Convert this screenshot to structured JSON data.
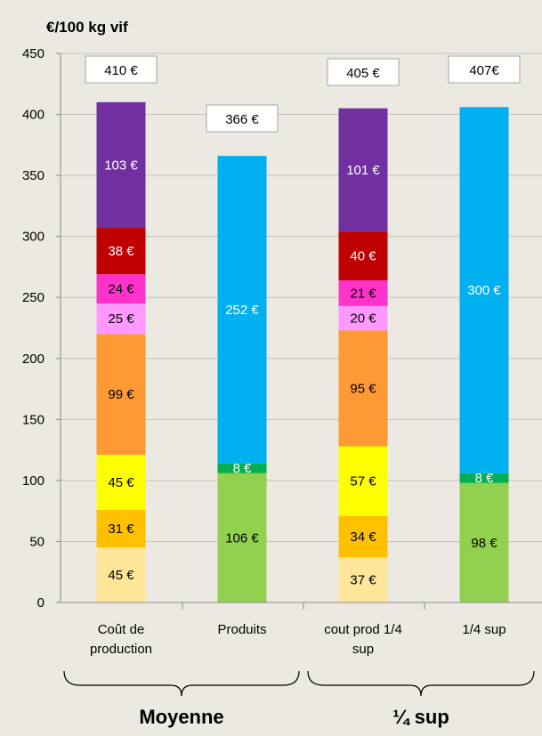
{
  "chart_data": {
    "type": "bar",
    "stacked": true,
    "ylabel": "€/100 kg vif",
    "ylim": [
      0,
      450
    ],
    "yticks": [
      "0",
      "50",
      "100",
      "150",
      "200",
      "250",
      "300",
      "350",
      "400",
      "450"
    ],
    "grid": true,
    "categories": [
      {
        "lines": [
          "Coût de",
          "production"
        ]
      },
      {
        "lines": [
          "Produits"
        ]
      },
      {
        "lines": [
          "cout prod 1/4",
          "sup"
        ]
      },
      {
        "lines": [
          "1/4 sup"
        ]
      }
    ],
    "bars": [
      {
        "total_label": "410 €",
        "segments": [
          {
            "value": 45,
            "label": "45 €",
            "color": "#ffe699",
            "text_color": "#000000"
          },
          {
            "value": 31,
            "label": "31 €",
            "color": "#ffc000",
            "text_color": "#000000"
          },
          {
            "value": 45,
            "label": "45 €",
            "color": "#ffff00",
            "text_color": "#000000"
          },
          {
            "value": 99,
            "label": "99 €",
            "color": "#ff9933",
            "text_color": "#000000"
          },
          {
            "value": 25,
            "label": "25 €",
            "color": "#ff99ff",
            "text_color": "#000000"
          },
          {
            "value": 24,
            "label": "24 €",
            "color": "#ff33cc",
            "text_color": "#000000"
          },
          {
            "value": 38,
            "label": "38 €",
            "color": "#c00000",
            "text_color": "#ffffff"
          },
          {
            "value": 103,
            "label": "103 €",
            "color": "#7030a0",
            "text_color": "#ffffff"
          }
        ]
      },
      {
        "total_label": "366 €",
        "segments": [
          {
            "value": 106,
            "label": "106 €",
            "color": "#92d050",
            "text_color": "#000000"
          },
          {
            "value": 8,
            "label": "8 €",
            "color": "#00b050",
            "text_color": "#ffffff"
          },
          {
            "value": 252,
            "label": "252 €",
            "color": "#00b0f0",
            "text_color": "#ffffff"
          }
        ]
      },
      {
        "total_label": "405 €",
        "segments": [
          {
            "value": 37,
            "label": "37 €",
            "color": "#ffe699",
            "text_color": "#000000"
          },
          {
            "value": 34,
            "label": "34 €",
            "color": "#ffc000",
            "text_color": "#000000"
          },
          {
            "value": 57,
            "label": "57 €",
            "color": "#ffff00",
            "text_color": "#000000"
          },
          {
            "value": 95,
            "label": "95 €",
            "color": "#ff9933",
            "text_color": "#000000"
          },
          {
            "value": 20,
            "label": "20 €",
            "color": "#ff99ff",
            "text_color": "#000000"
          },
          {
            "value": 21,
            "label": "21 €",
            "color": "#ff33cc",
            "text_color": "#000000"
          },
          {
            "value": 40,
            "label": "40 €",
            "color": "#c00000",
            "text_color": "#ffffff"
          },
          {
            "value": 101,
            "label": "101 €",
            "color": "#7030a0",
            "text_color": "#ffffff"
          }
        ]
      },
      {
        "total_label": "407€",
        "segments": [
          {
            "value": 98,
            "label": "98 €",
            "color": "#92d050",
            "text_color": "#000000"
          },
          {
            "value": 8,
            "label": "8 €",
            "color": "#00b050",
            "text_color": "#ffffff"
          },
          {
            "value": 300,
            "label": "300 €",
            "color": "#00b0f0",
            "text_color": "#ffffff"
          }
        ]
      }
    ],
    "groups": [
      {
        "label": "Moyenne",
        "categories": [
          0,
          1
        ]
      },
      {
        "label": "¼ sup",
        "categories": [
          2,
          3
        ]
      }
    ]
  },
  "colors": {
    "background": "#ece8e2",
    "grid": "#c4c1bd",
    "axis": "#8c8c8c"
  }
}
